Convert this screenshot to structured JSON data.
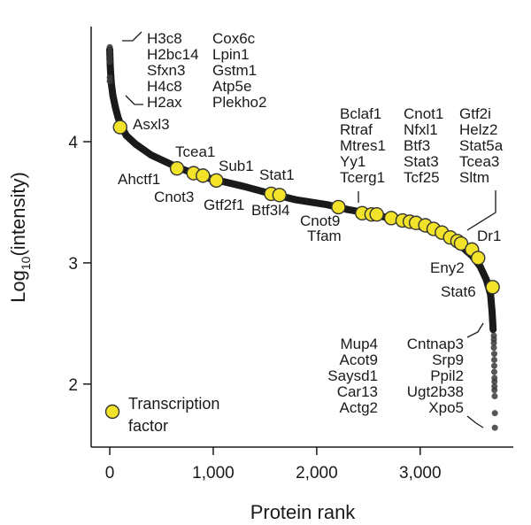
{
  "chart_data": {
    "type": "scatter",
    "xlabel": "Protein rank",
    "ylabel_base": "Log",
    "ylabel_sub": "10",
    "ylabel_rest": "(intensity)",
    "xlim": [
      -180,
      3900
    ],
    "ylim": [
      1.48,
      4.95
    ],
    "x_ticks": [
      {
        "value": 0,
        "label": "0"
      },
      {
        "value": 1000,
        "label": "1,000"
      },
      {
        "value": 2000,
        "label": "2,000"
      },
      {
        "value": 3000,
        "label": "3,000"
      }
    ],
    "y_ticks": [
      {
        "value": 2,
        "label": "2"
      },
      {
        "value": 3,
        "label": "3"
      },
      {
        "value": 4,
        "label": "4"
      }
    ],
    "grid": false,
    "colors": {
      "curve": "#1a1a1a",
      "transcription_factor": "#f2e32a",
      "tf_outline": "#333333"
    },
    "curve_points": [
      [
        0,
        4.76
      ],
      [
        5,
        4.62
      ],
      [
        15,
        4.48
      ],
      [
        30,
        4.38
      ],
      [
        55,
        4.28
      ],
      [
        80,
        4.2
      ],
      [
        110,
        4.13
      ],
      [
        160,
        4.05
      ],
      [
        250,
        3.98
      ],
      [
        400,
        3.89
      ],
      [
        650,
        3.79
      ],
      [
        900,
        3.71
      ],
      [
        1050,
        3.68
      ],
      [
        1300,
        3.63
      ],
      [
        1560,
        3.57
      ],
      [
        1800,
        3.52
      ],
      [
        2100,
        3.48
      ],
      [
        2300,
        3.44
      ],
      [
        2500,
        3.41
      ],
      [
        2700,
        3.37
      ],
      [
        2900,
        3.33
      ],
      [
        3100,
        3.27
      ],
      [
        3300,
        3.2
      ],
      [
        3420,
        3.12
      ],
      [
        3500,
        3.06
      ],
      [
        3580,
        2.97
      ],
      [
        3640,
        2.86
      ],
      [
        3680,
        2.74
      ],
      [
        3695,
        2.6
      ],
      [
        3705,
        2.45
      ]
    ],
    "tail_points": [
      {
        "x": 0,
        "y": 4.78
      },
      {
        "x": 0,
        "y": 4.74
      },
      {
        "x": 0,
        "y": 4.7
      },
      {
        "x": 0,
        "y": 4.66
      },
      {
        "x": 0,
        "y": 4.53
      },
      {
        "x": 0,
        "y": 4.5
      },
      {
        "x": 3712,
        "y": 2.4
      },
      {
        "x": 3712,
        "y": 2.37
      },
      {
        "x": 3712,
        "y": 2.34
      },
      {
        "x": 3712,
        "y": 2.3
      },
      {
        "x": 3716,
        "y": 2.25
      },
      {
        "x": 3716,
        "y": 2.2
      },
      {
        "x": 3716,
        "y": 2.15
      },
      {
        "x": 3716,
        "y": 2.1
      },
      {
        "x": 3718,
        "y": 2.05
      },
      {
        "x": 3718,
        "y": 2.02
      },
      {
        "x": 3718,
        "y": 1.98
      },
      {
        "x": 3718,
        "y": 1.95
      },
      {
        "x": 3720,
        "y": 1.9
      },
      {
        "x": 3722,
        "y": 1.76
      },
      {
        "x": 3722,
        "y": 1.64
      }
    ],
    "transcription_factors": [
      {
        "x": 100,
        "y": 4.12
      },
      {
        "x": 650,
        "y": 3.78
      },
      {
        "x": 810,
        "y": 3.74
      },
      {
        "x": 900,
        "y": 3.72
      },
      {
        "x": 1030,
        "y": 3.68
      },
      {
        "x": 1560,
        "y": 3.57
      },
      {
        "x": 1640,
        "y": 3.56
      },
      {
        "x": 2210,
        "y": 3.46
      },
      {
        "x": 2440,
        "y": 3.41
      },
      {
        "x": 2530,
        "y": 3.4
      },
      {
        "x": 2580,
        "y": 3.4
      },
      {
        "x": 2720,
        "y": 3.37
      },
      {
        "x": 2830,
        "y": 3.35
      },
      {
        "x": 2900,
        "y": 3.34
      },
      {
        "x": 2960,
        "y": 3.33
      },
      {
        "x": 3050,
        "y": 3.31
      },
      {
        "x": 3130,
        "y": 3.28
      },
      {
        "x": 3210,
        "y": 3.25
      },
      {
        "x": 3290,
        "y": 3.21
      },
      {
        "x": 3360,
        "y": 3.18
      },
      {
        "x": 3395,
        "y": 3.16
      },
      {
        "x": 3500,
        "y": 3.11
      },
      {
        "x": 3560,
        "y": 3.04
      },
      {
        "x": 3700,
        "y": 2.8
      }
    ],
    "legend": {
      "label_line1": "Transcription",
      "label_line2": "factor",
      "position": "bottom-left"
    },
    "annotations": {
      "top_left_col1": [
        "H3c8",
        "H2bc14",
        "Sfxn3",
        "H4c8",
        "H2ax"
      ],
      "top_left_col2": [
        "Cox6c",
        "Lpin1",
        "Gstm1",
        "Atp5e",
        "Plekho2"
      ],
      "tf_labels": [
        "Asxl3",
        "Tcea1",
        "Sub1",
        "Ahctf1",
        "Stat1",
        "Cnot3",
        "Gtf2f1",
        "Btf3l4",
        "Cnot9",
        "Tfam",
        "Eny2",
        "Dr1",
        "Stat6"
      ],
      "mid_right_col1": [
        "Bclaf1",
        "Rtraf",
        "Mtres1",
        "Yy1",
        "Tcerg1"
      ],
      "mid_right_col2": [
        "Cnot1",
        "Nfxl1",
        "Btf3",
        "Stat3",
        "Tcf25"
      ],
      "mid_right_col3": [
        "Gtf2i",
        "Helz2",
        "Stat5a",
        "Tcea3",
        "Sltm"
      ],
      "bottom_col1": [
        "Mup4",
        "Acot9",
        "Saysd1",
        "Car13",
        "Actg2"
      ],
      "bottom_col2": [
        "Cntnap3",
        "Srp9",
        "Ppil2",
        "Ugt2b38",
        "Xpo5"
      ]
    }
  }
}
